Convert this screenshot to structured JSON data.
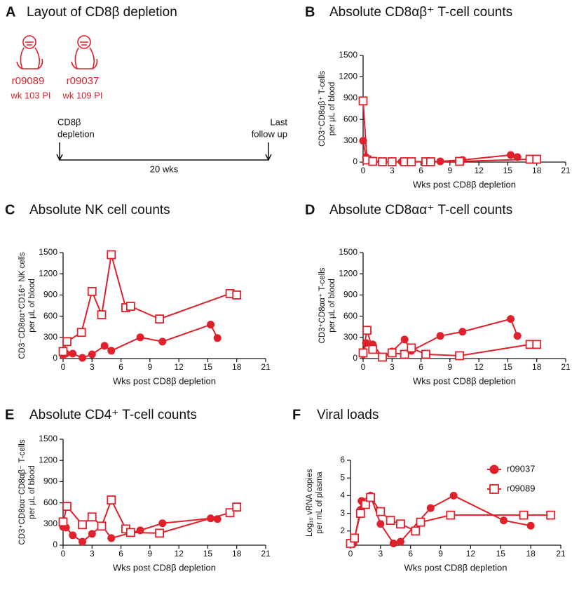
{
  "layout_panel": {
    "panel": "A",
    "title": "Layout of CD8β depletion",
    "animals": [
      {
        "id": "r09089",
        "time": "wk 103 PI"
      },
      {
        "id": "r09037",
        "time": "wk 109 PI"
      }
    ],
    "start_label": [
      "CD8β",
      "depletion"
    ],
    "end_label": [
      "Last",
      "follow up"
    ],
    "duration": "20 wks"
  },
  "chart_data": [
    {
      "type": "line",
      "panel": "B",
      "title": "Absolute CD8αβ⁺ T-cell counts",
      "x_label": "Wks post CD8β depletion",
      "y_label": [
        "CD3⁺CD8αβ⁺ T-cells",
        "per μL of blood"
      ],
      "xlim": [
        0,
        21
      ],
      "xticks": [
        0,
        3,
        6,
        9,
        12,
        15,
        18,
        21
      ],
      "ylim": [
        0,
        1500
      ],
      "yticks": [
        0,
        300,
        600,
        900,
        1200,
        1500
      ],
      "series": [
        {
          "color": "#e0202a",
          "marker": "circle",
          "x": [
            0,
            0.3,
            1,
            2,
            3,
            4,
            5,
            8,
            10.3,
            15.3,
            16
          ],
          "values": [
            300,
            70,
            20,
            5,
            5,
            5,
            5,
            10,
            30,
            100,
            70
          ]
        },
        {
          "color": "#e0202a",
          "marker": "square",
          "x": [
            0,
            0.4,
            1,
            2,
            3,
            4.3,
            5,
            6.5,
            7,
            10,
            17.3,
            18
          ],
          "values": [
            860,
            30,
            10,
            5,
            5,
            5,
            5,
            5,
            5,
            10,
            40,
            40
          ]
        }
      ]
    },
    {
      "type": "line",
      "panel": "C",
      "title": "Absolute NK cell counts",
      "x_label": "Wks post CD8β depletion",
      "y_label": [
        "CD3⁻CD8αα⁺CD16⁺ NK cells",
        "per μL of blood"
      ],
      "xlim": [
        0,
        21
      ],
      "xticks": [
        0,
        3,
        6,
        9,
        12,
        15,
        18,
        21
      ],
      "ylim": [
        0,
        1500
      ],
      "yticks": [
        0,
        300,
        600,
        900,
        1200,
        1500
      ],
      "series": [
        {
          "color": "#e0202a",
          "marker": "circle",
          "x": [
            0,
            0.3,
            1,
            2,
            3,
            4.3,
            5,
            8,
            10.3,
            15.3,
            16
          ],
          "values": [
            50,
            70,
            70,
            10,
            60,
            180,
            110,
            300,
            240,
            480,
            290
          ]
        },
        {
          "color": "#e0202a",
          "marker": "square",
          "x": [
            0,
            0.4,
            1.9,
            3,
            4,
            5,
            6.5,
            7,
            10,
            17.3,
            18
          ],
          "values": [
            100,
            240,
            370,
            950,
            620,
            1470,
            720,
            740,
            560,
            920,
            900
          ]
        }
      ]
    },
    {
      "type": "line",
      "panel": "D",
      "title": "Absolute CD8αα⁺ T-cell counts",
      "x_label": "Wks post CD8β depletion",
      "y_label": [
        "CD3⁺CD8αα⁺ T-cells",
        "per μL of blood"
      ],
      "xlim": [
        0,
        21
      ],
      "xticks": [
        0,
        3,
        6,
        9,
        12,
        15,
        18,
        21
      ],
      "ylim": [
        0,
        1500
      ],
      "yticks": [
        0,
        300,
        600,
        900,
        1200,
        1500
      ],
      "series": [
        {
          "color": "#e0202a",
          "marker": "circle",
          "x": [
            0,
            0.3,
            1,
            2,
            3,
            4.3,
            5,
            8,
            10.3,
            15.3,
            16
          ],
          "values": [
            60,
            220,
            200,
            30,
            100,
            270,
            110,
            320,
            380,
            560,
            320
          ]
        },
        {
          "color": "#e0202a",
          "marker": "square",
          "x": [
            0,
            0.4,
            1,
            2,
            3,
            4.3,
            5,
            6.5,
            10,
            17.3,
            18
          ],
          "values": [
            80,
            400,
            130,
            20,
            80,
            60,
            150,
            60,
            40,
            200,
            200
          ]
        }
      ]
    },
    {
      "type": "line",
      "panel": "E",
      "title": "Absolute CD4⁺ T-cell counts",
      "x_label": "Wks post CD8β depletion",
      "y_label": [
        "CD3⁺CD8αα⁻CD8αβ⁻ T-cells",
        "per μL of blood"
      ],
      "xlim": [
        0,
        21
      ],
      "xticks": [
        0,
        3,
        6,
        9,
        12,
        15,
        18,
        21
      ],
      "ylim": [
        0,
        1500
      ],
      "yticks": [
        0,
        300,
        600,
        900,
        1200,
        1500
      ],
      "series": [
        {
          "color": "#e0202a",
          "marker": "circle",
          "x": [
            0,
            0.3,
            1,
            2,
            3,
            4,
            5,
            8,
            10.3,
            15.3,
            16
          ],
          "values": [
            260,
            250,
            140,
            50,
            160,
            280,
            100,
            210,
            310,
            380,
            370
          ]
        },
        {
          "color": "#e0202a",
          "marker": "square",
          "x": [
            0,
            0.4,
            2,
            3,
            4,
            5,
            6.5,
            7,
            10,
            17.3,
            18
          ],
          "values": [
            330,
            550,
            290,
            400,
            270,
            640,
            230,
            180,
            170,
            460,
            540
          ]
        }
      ]
    },
    {
      "type": "line",
      "panel": "F",
      "title": "Viral loads",
      "x_label": "Wks post CD8β depletion",
      "y_label": [
        "Log₁₀ vRNA copies",
        "per mL of plasma"
      ],
      "legend": "upper right",
      "xlim": [
        0,
        21
      ],
      "xticks": [
        0,
        3,
        6,
        9,
        12,
        15,
        18,
        21
      ],
      "ylim": [
        1.2,
        6
      ],
      "yticks": [
        2,
        3,
        4,
        5,
        6
      ],
      "series": [
        {
          "name": "r09037",
          "color": "#e0202a",
          "marker": "circle",
          "x": [
            0,
            0.3,
            1,
            1.1,
            2,
            3,
            4.3,
            5,
            8,
            10.3,
            15.3,
            18
          ],
          "values": [
            1.3,
            1.3,
            3.2,
            3.7,
            4.0,
            2.4,
            1.3,
            1.4,
            3.3,
            4.0,
            2.6,
            2.3
          ]
        },
        {
          "name": "r09089",
          "color": "#e0202a",
          "marker": "square",
          "x": [
            0,
            0.4,
            1,
            1.5,
            2,
            3,
            4,
            5,
            6.5,
            7,
            10,
            17.3,
            20
          ],
          "values": [
            1.3,
            1.6,
            3.0,
            3.5,
            3.9,
            3.1,
            2.6,
            2.4,
            2.0,
            2.5,
            2.9,
            2.9,
            2.9
          ]
        }
      ]
    }
  ]
}
